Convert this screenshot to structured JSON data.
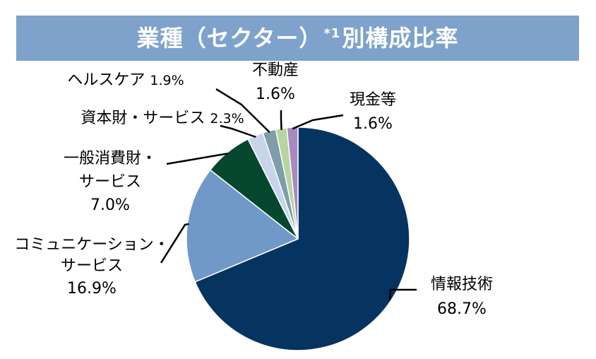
{
  "title": {
    "main": "業種（セクター）",
    "note": "*1",
    "suffix": "別構成比率"
  },
  "chart_data": {
    "type": "pie",
    "slices": [
      {
        "label": "情報技術",
        "value": 68.7,
        "value_label": "68.7%",
        "color": "#063460"
      },
      {
        "label": "コミュニケーション・サービス",
        "value": 16.9,
        "value_label": "16.9%",
        "color": "#7099c7"
      },
      {
        "label": "一般消費財・サービス",
        "value": 7.0,
        "value_label": "7.0%",
        "color": "#05472f"
      },
      {
        "label": "資本財・サービス",
        "value": 2.3,
        "value_label": "2.3%",
        "color": "#c6d5ea"
      },
      {
        "label": "ヘルスケア",
        "value": 1.9,
        "value_label": "1.9%",
        "color": "#7f9dab"
      },
      {
        "label": "不動産",
        "value": 1.6,
        "value_label": "1.6%",
        "color": "#b8d5a0"
      },
      {
        "label": "現金等",
        "value": 1.6,
        "value_label": "1.6%",
        "color": "#a98ac0"
      }
    ]
  }
}
